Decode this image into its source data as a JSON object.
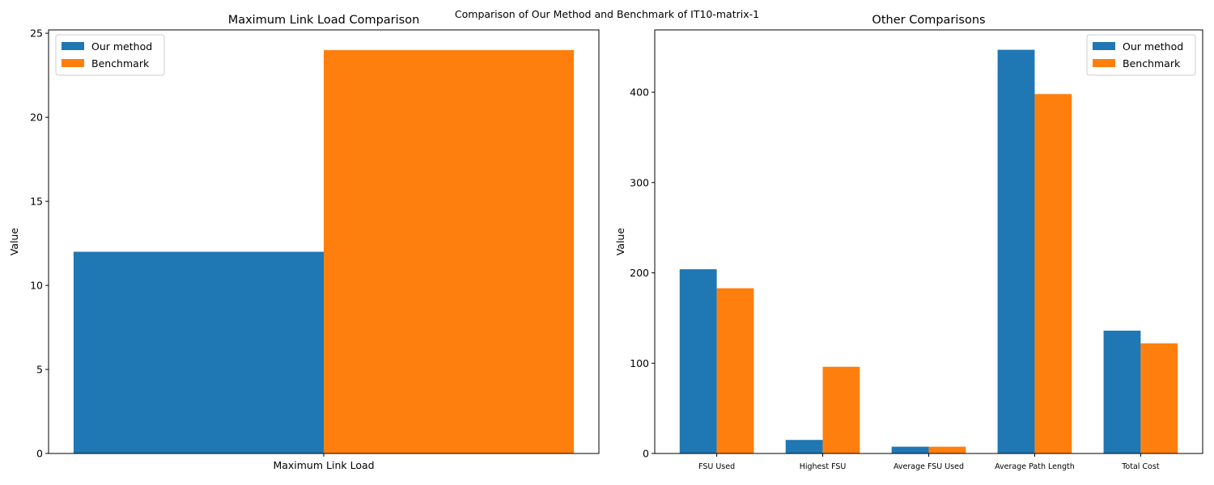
{
  "figure": {
    "suptitle": "Comparison of Our Method and Benchmark of IT10-matrix-1"
  },
  "colors": {
    "our_method": "#1f77b4",
    "benchmark": "#ff7f0e",
    "axes": "#000000",
    "background": "#ffffff"
  },
  "chart_data": [
    {
      "type": "bar",
      "title": "Maximum Link Load Comparison",
      "xlabel": "",
      "ylabel": "Value",
      "categories": [
        "Maximum Link Load"
      ],
      "series": [
        {
          "name": "Our method",
          "values": [
            12
          ]
        },
        {
          "name": "Benchmark",
          "values": [
            24
          ]
        }
      ],
      "ylim": [
        0,
        25.2
      ],
      "yticks": [
        0,
        5,
        10,
        15,
        20,
        25
      ],
      "grid": false,
      "legend": "upper-left"
    },
    {
      "type": "bar",
      "title": "Other Comparisons",
      "xlabel": "",
      "ylabel": "Value",
      "categories": [
        "FSU Used",
        "Highest FSU",
        "Average FSU Used",
        "Average Path Length",
        "Total Cost"
      ],
      "series": [
        {
          "name": "Our method",
          "values": [
            204,
            15,
            7.5,
            447,
            136
          ]
        },
        {
          "name": "Benchmark",
          "values": [
            183,
            96,
            7.5,
            398,
            122
          ]
        }
      ],
      "ylim": [
        0,
        469
      ],
      "yticks": [
        0,
        100,
        200,
        300,
        400
      ],
      "grid": false,
      "legend": "upper-right"
    }
  ]
}
